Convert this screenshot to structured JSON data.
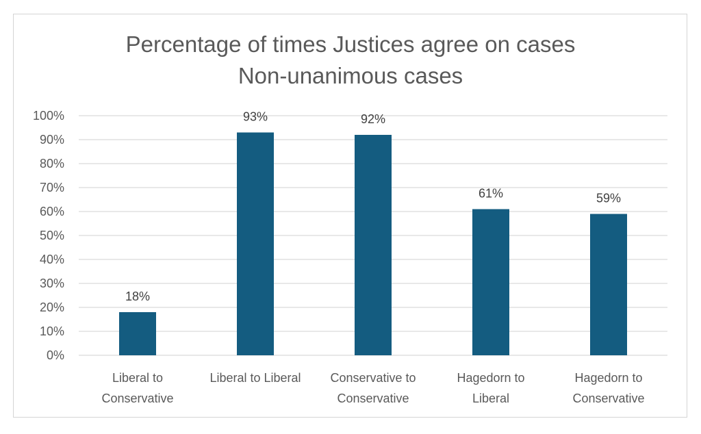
{
  "chart_data": {
    "type": "bar",
    "title_lines": [
      "Percentage of times Justices agree on cases",
      "Non-unanimous cases"
    ],
    "categories": [
      [
        "Liberal to",
        "Conservative"
      ],
      [
        "Liberal to Liberal"
      ],
      [
        "Conservative to",
        "Conservative"
      ],
      [
        "Hagedorn to",
        "Liberal"
      ],
      [
        "Hagedorn to",
        "Conservative"
      ]
    ],
    "values": [
      18,
      93,
      92,
      61,
      59
    ],
    "data_labels": [
      "18%",
      "93%",
      "92%",
      "61%",
      "59%"
    ],
    "y_ticks": [
      "0%",
      "10%",
      "20%",
      "30%",
      "40%",
      "50%",
      "60%",
      "70%",
      "80%",
      "90%",
      "100%"
    ],
    "ylim": [
      0,
      100
    ],
    "grid": true,
    "legend": "none",
    "colors": {
      "bar": "#145C80",
      "grid": "#d9d9d9",
      "text": "#595959"
    }
  }
}
